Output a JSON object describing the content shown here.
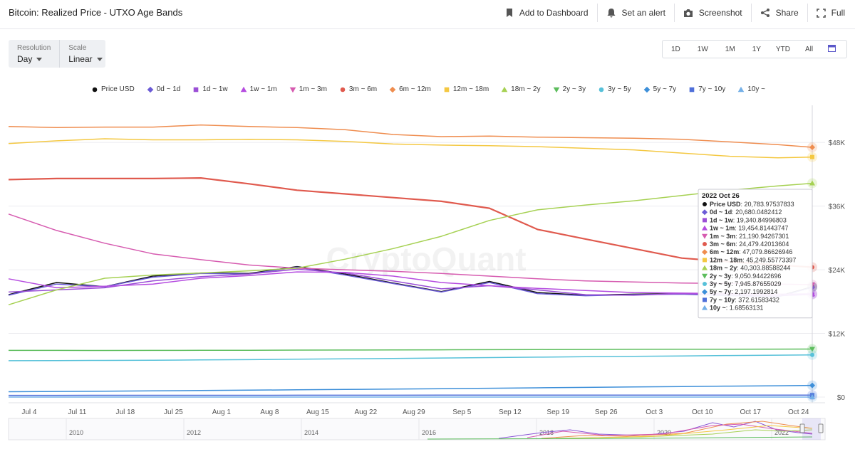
{
  "header": {
    "title": "Bitcoin: Realized Price - UTXO Age Bands",
    "actions": [
      "Add to Dashboard",
      "Set an alert",
      "Screenshot",
      "Share",
      "Full"
    ]
  },
  "controls": {
    "resolution_label": "Resolution",
    "resolution_value": "Day",
    "scale_label": "Scale",
    "scale_value": "Linear"
  },
  "ranges": [
    "1D",
    "1W",
    "1M",
    "1Y",
    "YTD",
    "All"
  ],
  "watermark": "CryptoQuant",
  "tooltip": {
    "date": "2022 Oct 26",
    "rows": [
      {
        "name": "Price USD",
        "value": "20,783.97537833"
      },
      {
        "name": "0d ~ 1d",
        "value": "20,680.0482412"
      },
      {
        "name": "1d ~ 1w",
        "value": "19,340.84996803"
      },
      {
        "name": "1w ~ 1m",
        "value": "19,454.81443747"
      },
      {
        "name": "1m ~ 3m",
        "value": "21,190.94267301"
      },
      {
        "name": "3m ~ 6m",
        "value": "24,479.42013604"
      },
      {
        "name": "6m ~ 12m",
        "value": "47,079.86626946"
      },
      {
        "name": "12m ~ 18m",
        "value": "45,249.55773397"
      },
      {
        "name": "18m ~ 2y",
        "value": "40,303.88588244"
      },
      {
        "name": "2y ~ 3y",
        "value": "9,050.94422696"
      },
      {
        "name": "3y ~ 5y",
        "value": "7,945.87655029"
      },
      {
        "name": "5y ~ 7y",
        "value": "2,197.1992814"
      },
      {
        "name": "7y ~ 10y",
        "value": "372.61583432"
      },
      {
        "name": "10y ~",
        "value": "1.68563131"
      }
    ]
  },
  "navigator": {
    "years": [
      "2010",
      "2012",
      "2014",
      "2016",
      "2018",
      "2020",
      "2022"
    ]
  },
  "chart_data": {
    "type": "line",
    "x_ticks": [
      "Jul 4",
      "Jul 11",
      "Jul 18",
      "Jul 25",
      "Aug 1",
      "Aug 8",
      "Aug 15",
      "Aug 22",
      "Aug 29",
      "Sep 5",
      "Sep 12",
      "Sep 19",
      "Sep 26",
      "Oct 3",
      "Oct 10",
      "Oct 17",
      "Oct 24"
    ],
    "y_ticks": [
      "$0",
      "$12K",
      "$24K",
      "$36K",
      "$48K"
    ],
    "ylim": [
      0,
      55000
    ],
    "x_range": [
      "2022-07-01",
      "2022-10-26"
    ],
    "x": [
      "2022-07-01",
      "2022-07-08",
      "2022-07-15",
      "2022-07-22",
      "2022-07-29",
      "2022-08-05",
      "2022-08-12",
      "2022-08-19",
      "2022-08-26",
      "2022-09-02",
      "2022-09-09",
      "2022-09-16",
      "2022-09-23",
      "2022-09-30",
      "2022-10-07",
      "2022-10-14",
      "2022-10-21",
      "2022-10-26"
    ],
    "series": [
      {
        "name": "Price USD",
        "color": "#111111",
        "marker": "circle",
        "values": [
          19300,
          21600,
          20800,
          22800,
          23400,
          23300,
          24600,
          23200,
          21500,
          19900,
          21800,
          19700,
          19200,
          19400,
          19500,
          19200,
          19000,
          20784
        ]
      },
      {
        "name": "0d ~ 1d",
        "color": "#6b5bd6",
        "marker": "diamond",
        "values": [
          19200,
          21300,
          20800,
          22600,
          23300,
          23200,
          24500,
          23000,
          21400,
          19800,
          21600,
          19500,
          19100,
          19300,
          19400,
          19100,
          18900,
          20680
        ]
      },
      {
        "name": "1d ~ 1w",
        "color": "#9b4fd6",
        "marker": "square",
        "values": [
          19800,
          20200,
          20600,
          21900,
          22700,
          23200,
          24100,
          23400,
          21900,
          20400,
          21000,
          20200,
          19300,
          19200,
          19500,
          19300,
          19100,
          19341
        ]
      },
      {
        "name": "1w ~ 1m",
        "color": "#b54ce0",
        "marker": "triangle",
        "values": [
          22300,
          20600,
          20900,
          21300,
          22400,
          22900,
          23600,
          23500,
          22800,
          21600,
          21000,
          20500,
          20100,
          19700,
          19600,
          19500,
          19400,
          19455
        ]
      },
      {
        "name": "1m ~ 3m",
        "color": "#d65bb0",
        "marker": "triangle-down",
        "values": [
          34500,
          31400,
          29000,
          27000,
          25900,
          24900,
          24300,
          24000,
          23700,
          23300,
          22800,
          22300,
          21900,
          21700,
          21500,
          21400,
          21300,
          21191
        ]
      },
      {
        "name": "3m ~ 6m",
        "color": "#e05a4e",
        "marker": "circle",
        "values": [
          41000,
          41200,
          41200,
          41200,
          41300,
          40200,
          39000,
          38300,
          37600,
          36900,
          35600,
          31600,
          29800,
          28000,
          26200,
          25500,
          24900,
          24479
        ]
      },
      {
        "name": "6m ~ 12m",
        "color": "#ef8d4f",
        "marker": "diamond",
        "values": [
          51000,
          50800,
          50900,
          50900,
          51300,
          51000,
          50800,
          50400,
          49500,
          49100,
          49200,
          49000,
          48900,
          48800,
          48600,
          48100,
          47600,
          47080
        ]
      },
      {
        "name": "12m ~ 18m",
        "color": "#f4c842",
        "marker": "square",
        "values": [
          47800,
          48300,
          48700,
          48500,
          48500,
          48600,
          48500,
          48200,
          47700,
          47500,
          47400,
          47200,
          46900,
          46600,
          46000,
          45400,
          45100,
          45250
        ]
      },
      {
        "name": "18m ~ 2y",
        "color": "#a6d153",
        "marker": "triangle",
        "values": [
          17400,
          20200,
          22400,
          23000,
          23400,
          23800,
          24300,
          26000,
          28000,
          30300,
          33300,
          35300,
          36200,
          37000,
          38000,
          39000,
          39800,
          40304
        ]
      },
      {
        "name": "2y ~ 3y",
        "color": "#5cbd5c",
        "marker": "triangle-down",
        "values": [
          8800,
          8800,
          8790,
          8800,
          8810,
          8830,
          8850,
          8870,
          8890,
          8910,
          8940,
          8960,
          8980,
          9000,
          9010,
          9030,
          9040,
          9051
        ]
      },
      {
        "name": "3y ~ 5y",
        "color": "#57c1d9",
        "marker": "circle",
        "values": [
          6850,
          6880,
          6910,
          6950,
          7000,
          7060,
          7130,
          7200,
          7280,
          7360,
          7440,
          7520,
          7600,
          7690,
          7760,
          7840,
          7900,
          7946
        ]
      },
      {
        "name": "5y ~ 7y",
        "color": "#3d8fd9",
        "marker": "diamond",
        "values": [
          1000,
          1060,
          1120,
          1180,
          1240,
          1300,
          1370,
          1440,
          1510,
          1580,
          1660,
          1740,
          1820,
          1900,
          1980,
          2060,
          2130,
          2197
        ]
      },
      {
        "name": "7y ~ 10y",
        "color": "#4f6fd9",
        "marker": "square",
        "values": [
          320,
          325,
          330,
          334,
          338,
          342,
          346,
          350,
          353,
          356,
          359,
          362,
          364,
          366,
          368,
          370,
          371,
          373
        ]
      },
      {
        "name": "10y ~",
        "color": "#74b0e8",
        "marker": "triangle",
        "values": [
          1.6,
          1.61,
          1.62,
          1.62,
          1.63,
          1.63,
          1.64,
          1.64,
          1.65,
          1.65,
          1.66,
          1.66,
          1.67,
          1.67,
          1.68,
          1.68,
          1.68,
          1.69
        ]
      }
    ]
  }
}
